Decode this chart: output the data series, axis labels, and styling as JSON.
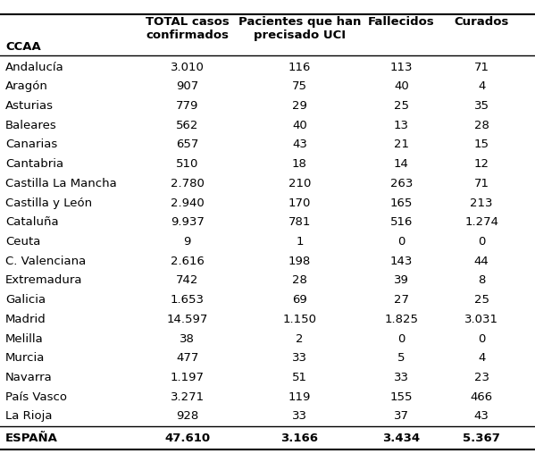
{
  "col_headers": [
    "CCAA",
    "TOTAL casos\nconfirmados",
    "Pacientes que han\nprecisado UCI",
    "Fallecidos",
    "Curados"
  ],
  "rows": [
    [
      "Andalucía",
      "3.010",
      "116",
      "113",
      "71"
    ],
    [
      "Aragón",
      "907",
      "75",
      "40",
      "4"
    ],
    [
      "Asturias",
      "779",
      "29",
      "25",
      "35"
    ],
    [
      "Baleares",
      "562",
      "40",
      "13",
      "28"
    ],
    [
      "Canarias",
      "657",
      "43",
      "21",
      "15"
    ],
    [
      "Cantabria",
      "510",
      "18",
      "14",
      "12"
    ],
    [
      "Castilla La Mancha",
      "2.780",
      "210",
      "263",
      "71"
    ],
    [
      "Castilla y León",
      "2.940",
      "170",
      "165",
      "213"
    ],
    [
      "Cataluña",
      "9.937",
      "781",
      "516",
      "1.274"
    ],
    [
      "Ceuta",
      "9",
      "1",
      "0",
      "0"
    ],
    [
      "C. Valenciana",
      "2.616",
      "198",
      "143",
      "44"
    ],
    [
      "Extremadura",
      "742",
      "28",
      "39",
      "8"
    ],
    [
      "Galicia",
      "1.653",
      "69",
      "27",
      "25"
    ],
    [
      "Madrid",
      "14.597",
      "1.150",
      "1.825",
      "3.031"
    ],
    [
      "Melilla",
      "38",
      "2",
      "0",
      "0"
    ],
    [
      "Murcia",
      "477",
      "33",
      "5",
      "4"
    ],
    [
      "Navarra",
      "1.197",
      "51",
      "33",
      "23"
    ],
    [
      "País Vasco",
      "3.271",
      "119",
      "155",
      "466"
    ],
    [
      "La Rioja",
      "928",
      "33",
      "37",
      "43"
    ]
  ],
  "footer": [
    "ESPAÑA",
    "47.610",
    "3.166",
    "3.434",
    "5.367"
  ],
  "col_aligns": [
    "left",
    "center",
    "center",
    "center",
    "center"
  ],
  "header_col1": "CCAA",
  "background_color": "#ffffff",
  "text_color": "#000000",
  "line_color": "#000000",
  "font_size": 9.5,
  "header_font_size": 9.5
}
